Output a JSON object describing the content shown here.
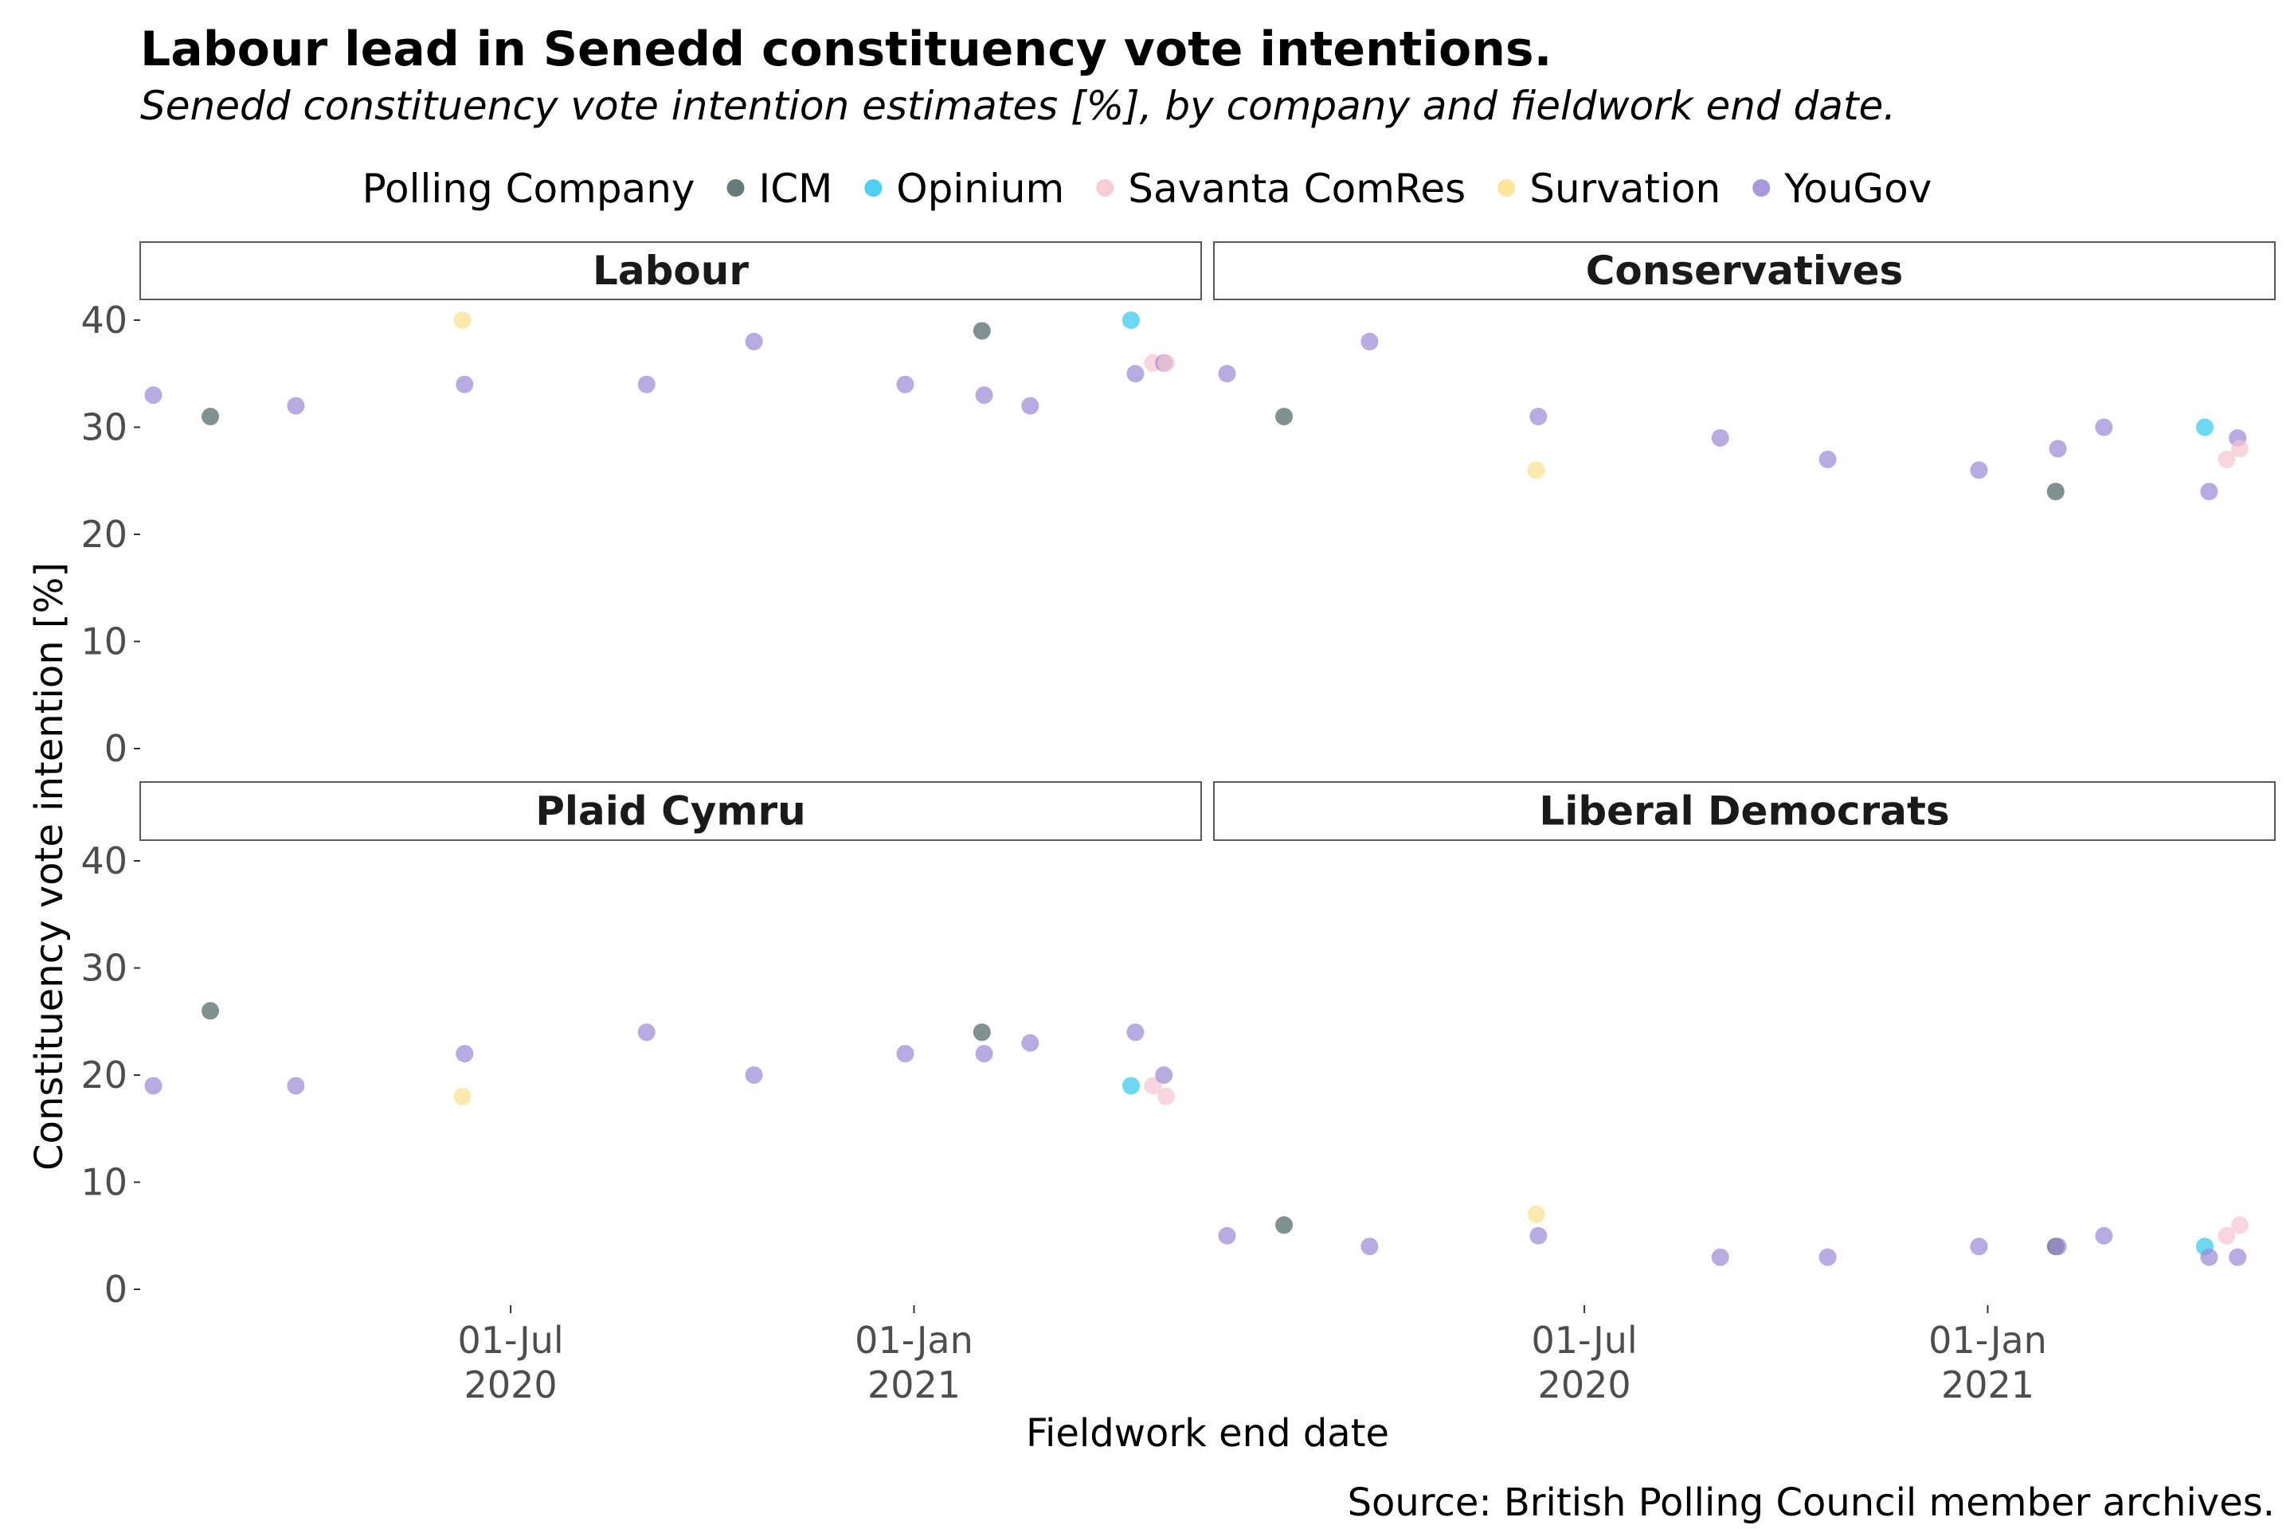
{
  "title": "Labour lead in Senedd constituency vote intentions.",
  "subtitle": "Senedd constituency vote intention estimates [%], by company and fieldwork end date.",
  "caption": "Source: British Polling Council member archives.",
  "legend": {
    "title": "Polling Company",
    "position": "top",
    "entries": [
      {
        "name": "ICM",
        "color": "#4a6363"
      },
      {
        "name": "Opinium",
        "color": "#2ec8ef"
      },
      {
        "name": "Savanta ComRes",
        "color": "#f6c5cf"
      },
      {
        "name": "Survation",
        "color": "#fbdf8a"
      },
      {
        "name": "YouGov",
        "color": "#9a87d6"
      }
    ]
  },
  "chart_data": {
    "type": "scatter",
    "xlabel": "Fieldwork end date",
    "ylabel": "Constituency vote intention [%]",
    "ylim": [
      0,
      40
    ],
    "yticks": [
      0,
      10,
      20,
      30,
      40
    ],
    "xlim": [
      "2020-01-14",
      "2021-05-12"
    ],
    "xticks": [
      {
        "date": "2020-07-01",
        "line1": "01-Jul",
        "line2": "2020"
      },
      {
        "date": "2021-01-01",
        "line1": "01-Jan",
        "line2": "2021"
      }
    ],
    "grid": false,
    "facets": [
      {
        "name": "Labour",
        "points": [
          {
            "company": "YouGov",
            "date": "2020-01-20",
            "value": 33
          },
          {
            "company": "ICM",
            "date": "2020-02-15",
            "value": 31
          },
          {
            "company": "YouGov",
            "date": "2020-03-25",
            "value": 32
          },
          {
            "company": "Survation",
            "date": "2020-06-09",
            "value": 40
          },
          {
            "company": "YouGov",
            "date": "2020-06-10",
            "value": 34
          },
          {
            "company": "YouGov",
            "date": "2020-09-01",
            "value": 34
          },
          {
            "company": "YouGov",
            "date": "2020-10-20",
            "value": 38
          },
          {
            "company": "YouGov",
            "date": "2020-12-28",
            "value": 34
          },
          {
            "company": "ICM",
            "date": "2021-02-01",
            "value": 39
          },
          {
            "company": "YouGov",
            "date": "2021-02-02",
            "value": 33
          },
          {
            "company": "YouGov",
            "date": "2021-02-23",
            "value": 32
          },
          {
            "company": "Opinium",
            "date": "2021-04-10",
            "value": 40
          },
          {
            "company": "YouGov",
            "date": "2021-04-12",
            "value": 35
          },
          {
            "company": "Savanta ComRes",
            "date": "2021-04-20",
            "value": 36
          },
          {
            "company": "YouGov",
            "date": "2021-04-25",
            "value": 36
          },
          {
            "company": "Savanta ComRes",
            "date": "2021-04-26",
            "value": 36
          }
        ]
      },
      {
        "name": "Conservatives",
        "points": [
          {
            "company": "YouGov",
            "date": "2020-01-20",
            "value": 35
          },
          {
            "company": "ICM",
            "date": "2020-02-15",
            "value": 31
          },
          {
            "company": "YouGov",
            "date": "2020-03-25",
            "value": 38
          },
          {
            "company": "Survation",
            "date": "2020-06-09",
            "value": 26
          },
          {
            "company": "YouGov",
            "date": "2020-06-10",
            "value": 31
          },
          {
            "company": "YouGov",
            "date": "2020-09-01",
            "value": 29
          },
          {
            "company": "YouGov",
            "date": "2020-10-20",
            "value": 27
          },
          {
            "company": "YouGov",
            "date": "2020-12-28",
            "value": 26
          },
          {
            "company": "ICM",
            "date": "2021-02-01",
            "value": 24
          },
          {
            "company": "YouGov",
            "date": "2021-02-02",
            "value": 28
          },
          {
            "company": "YouGov",
            "date": "2021-02-23",
            "value": 30
          },
          {
            "company": "Opinium",
            "date": "2021-04-10",
            "value": 30
          },
          {
            "company": "YouGov",
            "date": "2021-04-12",
            "value": 24
          },
          {
            "company": "Savanta ComRes",
            "date": "2021-04-20",
            "value": 27
          },
          {
            "company": "YouGov",
            "date": "2021-04-25",
            "value": 29
          },
          {
            "company": "Savanta ComRes",
            "date": "2021-04-26",
            "value": 28
          }
        ]
      },
      {
        "name": "Plaid Cymru",
        "points": [
          {
            "company": "YouGov",
            "date": "2020-01-20",
            "value": 19
          },
          {
            "company": "ICM",
            "date": "2020-02-15",
            "value": 26
          },
          {
            "company": "YouGov",
            "date": "2020-03-25",
            "value": 19
          },
          {
            "company": "Survation",
            "date": "2020-06-09",
            "value": 18
          },
          {
            "company": "YouGov",
            "date": "2020-06-10",
            "value": 22
          },
          {
            "company": "YouGov",
            "date": "2020-09-01",
            "value": 24
          },
          {
            "company": "YouGov",
            "date": "2020-10-20",
            "value": 20
          },
          {
            "company": "YouGov",
            "date": "2020-12-28",
            "value": 22
          },
          {
            "company": "ICM",
            "date": "2021-02-01",
            "value": 24
          },
          {
            "company": "YouGov",
            "date": "2021-02-02",
            "value": 22
          },
          {
            "company": "YouGov",
            "date": "2021-02-23",
            "value": 23
          },
          {
            "company": "Opinium",
            "date": "2021-04-10",
            "value": 19
          },
          {
            "company": "YouGov",
            "date": "2021-04-12",
            "value": 24
          },
          {
            "company": "Savanta ComRes",
            "date": "2021-04-20",
            "value": 19
          },
          {
            "company": "YouGov",
            "date": "2021-04-25",
            "value": 20
          },
          {
            "company": "Savanta ComRes",
            "date": "2021-04-26",
            "value": 18
          }
        ]
      },
      {
        "name": "Liberal Democrats",
        "points": [
          {
            "company": "YouGov",
            "date": "2020-01-20",
            "value": 5
          },
          {
            "company": "ICM",
            "date": "2020-02-15",
            "value": 6
          },
          {
            "company": "YouGov",
            "date": "2020-03-25",
            "value": 4
          },
          {
            "company": "Survation",
            "date": "2020-06-09",
            "value": 7
          },
          {
            "company": "YouGov",
            "date": "2020-06-10",
            "value": 5
          },
          {
            "company": "YouGov",
            "date": "2020-09-01",
            "value": 3
          },
          {
            "company": "YouGov",
            "date": "2020-10-20",
            "value": 3
          },
          {
            "company": "YouGov",
            "date": "2020-12-28",
            "value": 4
          },
          {
            "company": "ICM",
            "date": "2021-02-01",
            "value": 4
          },
          {
            "company": "YouGov",
            "date": "2021-02-02",
            "value": 4
          },
          {
            "company": "YouGov",
            "date": "2021-02-23",
            "value": 5
          },
          {
            "company": "Opinium",
            "date": "2021-04-10",
            "value": 4
          },
          {
            "company": "YouGov",
            "date": "2021-04-12",
            "value": 3
          },
          {
            "company": "Savanta ComRes",
            "date": "2021-04-20",
            "value": 5
          },
          {
            "company": "YouGov",
            "date": "2021-04-25",
            "value": 3
          },
          {
            "company": "Savanta ComRes",
            "date": "2021-04-26",
            "value": 6
          }
        ]
      }
    ]
  }
}
